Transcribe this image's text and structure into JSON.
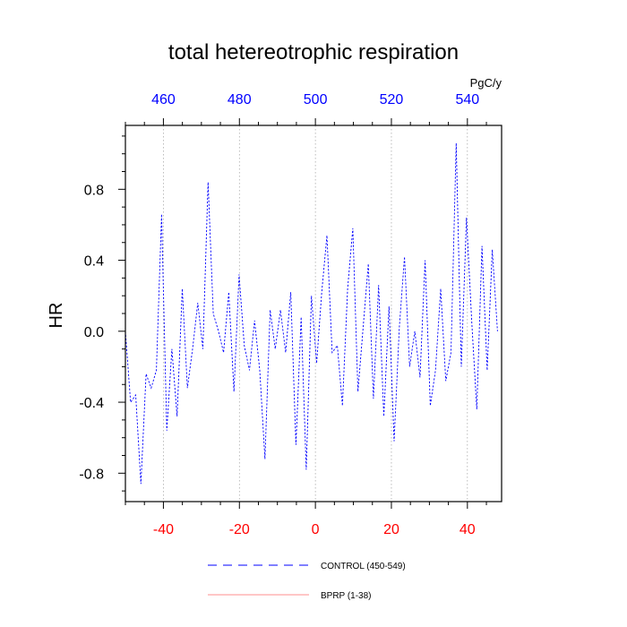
{
  "chart_data": {
    "type": "line",
    "title": "total hetereotrophic respiration",
    "units_label": "PgC/y",
    "ylabel": "HR",
    "xlabel": "",
    "xlim": [
      -50,
      49
    ],
    "ylim": [
      -0.96,
      1.16
    ],
    "x_ticks": [
      -40,
      -20,
      0,
      20,
      40
    ],
    "x_tick_labels": [
      "-40",
      "-20",
      "0",
      "20",
      "40"
    ],
    "top_ticks": [
      460,
      480,
      500,
      520,
      540
    ],
    "top_tick_labels": [
      "460",
      "480",
      "500",
      "520",
      "540"
    ],
    "top_axis_offset": 500,
    "y_ticks": [
      -0.8,
      -0.4,
      0.0,
      0.4,
      0.8
    ],
    "y_tick_labels": [
      "-0.8",
      "-0.4",
      "0.0",
      "0.4",
      "0.8"
    ],
    "y_minor_step": 0.1,
    "x_minor_step": 5,
    "colors": {
      "control": "#0000ff",
      "bprp": "#ff0000",
      "bottom_ticks": "#ff0000",
      "top_ticks": "#0000ff",
      "grid": "#a0a0a0"
    },
    "series": [
      {
        "name": "CONTROL (450-549)",
        "x_start": -50,
        "values": [
          0.0,
          -0.4,
          -0.36,
          -0.86,
          -0.24,
          -0.32,
          -0.22,
          0.66,
          -0.56,
          -0.1,
          -0.48,
          0.24,
          -0.32,
          -0.1,
          0.16,
          -0.1,
          0.84,
          0.1,
          0.0,
          -0.12,
          0.22,
          -0.34,
          0.32,
          -0.08,
          -0.22,
          0.06,
          -0.22,
          -0.72,
          0.12,
          -0.1,
          0.12,
          -0.12,
          0.22,
          -0.64,
          0.08,
          -0.78,
          0.2,
          -0.18,
          0.22,
          0.54,
          -0.12,
          -0.08,
          -0.42,
          0.24,
          0.58,
          -0.34,
          0.02,
          0.38,
          -0.38,
          0.26,
          -0.48,
          0.14,
          -0.62,
          0.02,
          0.42,
          -0.2,
          0.0,
          -0.26,
          0.4,
          -0.42,
          -0.22,
          0.24,
          -0.28,
          -0.12,
          1.06,
          -0.2,
          0.64,
          0.06,
          -0.44,
          0.48,
          -0.22,
          0.46,
          0.0
        ]
      },
      {
        "name": "BPRP (1-38)",
        "values": []
      }
    ]
  }
}
